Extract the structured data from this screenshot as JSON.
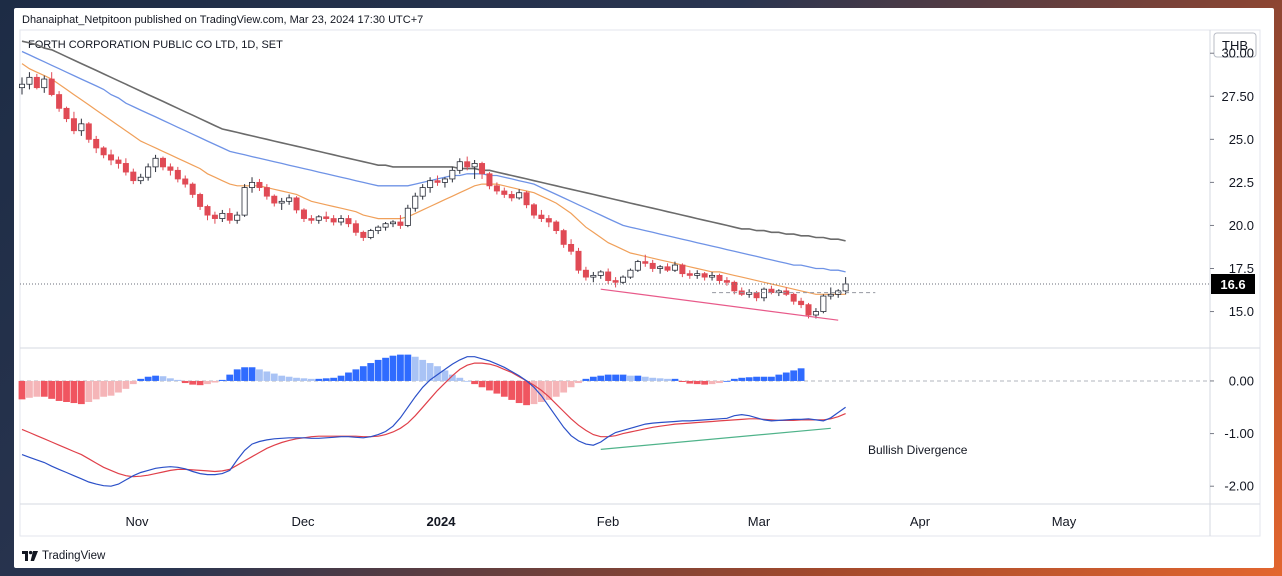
{
  "header": {
    "publisher_line": "Dhanaiphat_Netpitoon published on TradingView.com, Mar 23, 2024 17:30 UTC+7",
    "instrument": "FORTH CORPORATION PUBLIC CO LTD, 1D, SET",
    "currency": "THB"
  },
  "footer": {
    "brand": "TradingView"
  },
  "colors": {
    "up": "#2962ff",
    "down": "#e04a55",
    "ema_fast": "#f0a05a",
    "ema_mid": "#6f93e6",
    "ema_slow": "#6b6b6b",
    "macd_line": "#2b50c8",
    "signal_line": "#e0404a",
    "hist_up_strong": "#2f6bff",
    "hist_up_weak": "#a9c3f5",
    "hist_down_strong": "#f05560",
    "hist_down_weak": "#f5b5b8",
    "trendline_price": "#e85a8a",
    "trendline_macd": "#4fb38a",
    "last_price_bg": "#000000"
  },
  "chart_data": {
    "type": "candlestick",
    "price_panel": {
      "y_ticks": [
        "30.00",
        "27.50",
        "25.0",
        "22.5",
        "20.0",
        "17.5",
        "15.0"
      ],
      "ylim": [
        13.0,
        31.0
      ],
      "last_price_label": "16.6",
      "last_price": 16.6
    },
    "macd_panel": {
      "y_ticks": [
        "0.00",
        "-1.00",
        "-2.00"
      ],
      "ylim": [
        -2.3,
        0.55
      ]
    },
    "x_ticks": [
      "Nov",
      "Dec",
      "2024",
      "Feb",
      "Mar",
      "Apr",
      "May"
    ],
    "annotation": "Bullish Divergence",
    "candles": [
      [
        28.0,
        28.6,
        27.6,
        28.2
      ],
      [
        28.2,
        28.9,
        27.9,
        28.6
      ],
      [
        28.6,
        28.8,
        27.9,
        28.0
      ],
      [
        28.0,
        28.7,
        27.7,
        28.5
      ],
      [
        28.5,
        28.9,
        27.5,
        27.6
      ],
      [
        27.6,
        27.8,
        26.6,
        26.8
      ],
      [
        26.8,
        26.9,
        26.0,
        26.2
      ],
      [
        26.2,
        26.6,
        25.3,
        25.5
      ],
      [
        25.5,
        26.2,
        25.2,
        25.9
      ],
      [
        25.9,
        26.0,
        24.8,
        25.0
      ],
      [
        25.0,
        25.2,
        24.2,
        24.5
      ],
      [
        24.5,
        24.6,
        23.9,
        24.1
      ],
      [
        24.1,
        24.4,
        23.5,
        23.8
      ],
      [
        23.8,
        24.0,
        23.3,
        23.6
      ],
      [
        23.6,
        23.9,
        22.9,
        23.1
      ],
      [
        23.1,
        23.3,
        22.4,
        22.6
      ],
      [
        22.6,
        23.0,
        22.4,
        22.8
      ],
      [
        22.8,
        23.6,
        22.6,
        23.4
      ],
      [
        23.4,
        24.1,
        23.1,
        23.9
      ],
      [
        23.9,
        24.0,
        23.2,
        23.4
      ],
      [
        23.4,
        23.6,
        22.9,
        23.2
      ],
      [
        23.2,
        23.4,
        22.5,
        22.7
      ],
      [
        22.7,
        22.9,
        22.2,
        22.4
      ],
      [
        22.4,
        22.5,
        21.6,
        21.8
      ],
      [
        21.8,
        21.9,
        20.9,
        21.1
      ],
      [
        21.1,
        21.2,
        20.3,
        20.6
      ],
      [
        20.6,
        20.8,
        20.1,
        20.4
      ],
      [
        20.4,
        20.9,
        20.2,
        20.7
      ],
      [
        20.7,
        21.0,
        20.1,
        20.3
      ],
      [
        20.3,
        20.8,
        20.1,
        20.6
      ],
      [
        20.6,
        22.4,
        20.5,
        22.2
      ],
      [
        22.2,
        22.8,
        21.9,
        22.5
      ],
      [
        22.5,
        22.7,
        22.0,
        22.2
      ],
      [
        22.2,
        22.4,
        21.5,
        21.7
      ],
      [
        21.7,
        21.8,
        21.1,
        21.3
      ],
      [
        21.3,
        21.6,
        20.9,
        21.4
      ],
      [
        21.4,
        21.8,
        21.2,
        21.6
      ],
      [
        21.6,
        21.7,
        20.7,
        20.9
      ],
      [
        20.9,
        21.0,
        20.2,
        20.4
      ],
      [
        20.4,
        20.6,
        20.1,
        20.3
      ],
      [
        20.3,
        20.6,
        20.1,
        20.5
      ],
      [
        20.5,
        20.8,
        20.2,
        20.4
      ],
      [
        20.4,
        20.6,
        20.0,
        20.2
      ],
      [
        20.2,
        20.6,
        20.0,
        20.4
      ],
      [
        20.4,
        20.6,
        19.9,
        20.1
      ],
      [
        20.1,
        20.3,
        19.4,
        19.6
      ],
      [
        19.6,
        19.7,
        19.1,
        19.3
      ],
      [
        19.3,
        19.8,
        19.2,
        19.7
      ],
      [
        19.7,
        20.0,
        19.5,
        19.9
      ],
      [
        19.9,
        20.2,
        19.7,
        20.1
      ],
      [
        20.1,
        20.3,
        19.9,
        20.2
      ],
      [
        20.2,
        20.6,
        19.8,
        20.0
      ],
      [
        20.0,
        21.2,
        19.9,
        21.0
      ],
      [
        21.0,
        21.9,
        20.8,
        21.7
      ],
      [
        21.7,
        22.4,
        21.5,
        22.2
      ],
      [
        22.2,
        22.8,
        21.9,
        22.6
      ],
      [
        22.6,
        22.9,
        22.3,
        22.5
      ],
      [
        22.5,
        22.8,
        22.2,
        22.7
      ],
      [
        22.7,
        23.4,
        22.5,
        23.2
      ],
      [
        23.2,
        23.9,
        23.0,
        23.7
      ],
      [
        23.7,
        24.0,
        23.2,
        23.4
      ],
      [
        23.4,
        23.8,
        22.7,
        23.6
      ],
      [
        23.6,
        23.7,
        22.7,
        23.0
      ],
      [
        23.0,
        23.1,
        22.1,
        22.3
      ],
      [
        22.3,
        22.5,
        21.8,
        22.0
      ],
      [
        22.0,
        22.2,
        21.6,
        21.8
      ],
      [
        21.8,
        22.0,
        21.4,
        21.6
      ],
      [
        21.6,
        22.1,
        21.5,
        21.9
      ],
      [
        21.9,
        22.0,
        21.0,
        21.2
      ],
      [
        21.2,
        21.3,
        20.4,
        20.6
      ],
      [
        20.6,
        20.9,
        20.2,
        20.4
      ],
      [
        20.4,
        20.6,
        19.9,
        20.2
      ],
      [
        20.2,
        20.3,
        19.5,
        19.7
      ],
      [
        19.7,
        19.8,
        18.7,
        18.9
      ],
      [
        18.9,
        19.2,
        18.3,
        18.5
      ],
      [
        18.5,
        18.7,
        17.2,
        17.4
      ],
      [
        17.4,
        17.6,
        16.8,
        17.0
      ],
      [
        17.0,
        17.3,
        16.7,
        17.1
      ],
      [
        17.1,
        17.4,
        16.9,
        17.3
      ],
      [
        17.3,
        17.5,
        16.6,
        16.8
      ],
      [
        16.8,
        17.0,
        16.4,
        16.7
      ],
      [
        16.7,
        17.1,
        16.6,
        17.0
      ],
      [
        17.0,
        17.5,
        16.9,
        17.4
      ],
      [
        17.4,
        18.0,
        17.3,
        17.9
      ],
      [
        17.9,
        18.3,
        17.6,
        17.8
      ],
      [
        17.8,
        18.0,
        17.3,
        17.5
      ],
      [
        17.5,
        17.7,
        17.2,
        17.6
      ],
      [
        17.6,
        17.8,
        17.3,
        17.4
      ],
      [
        17.4,
        17.9,
        17.3,
        17.7
      ],
      [
        17.7,
        17.8,
        17.0,
        17.2
      ],
      [
        17.2,
        17.4,
        16.9,
        17.1
      ],
      [
        17.1,
        17.4,
        16.9,
        17.2
      ],
      [
        17.2,
        17.3,
        16.8,
        17.0
      ],
      [
        17.0,
        17.3,
        16.8,
        17.1
      ],
      [
        17.1,
        17.2,
        16.6,
        16.8
      ],
      [
        16.8,
        17.0,
        16.5,
        16.7
      ],
      [
        16.7,
        16.8,
        16.0,
        16.2
      ],
      [
        16.2,
        16.4,
        15.9,
        16.0
      ],
      [
        16.0,
        16.3,
        15.8,
        16.1
      ],
      [
        16.1,
        16.2,
        15.6,
        15.8
      ],
      [
        15.8,
        16.4,
        15.6,
        16.3
      ],
      [
        16.3,
        16.5,
        16.0,
        16.1
      ],
      [
        16.1,
        16.3,
        15.9,
        16.2
      ],
      [
        16.2,
        16.4,
        15.9,
        16.0
      ],
      [
        16.0,
        16.1,
        15.4,
        15.6
      ],
      [
        15.6,
        15.8,
        15.2,
        15.4
      ],
      [
        15.4,
        15.5,
        14.6,
        14.8
      ],
      [
        14.8,
        15.2,
        14.6,
        15.0
      ],
      [
        15.0,
        16.0,
        14.9,
        15.9
      ],
      [
        15.9,
        16.4,
        15.7,
        16.0
      ],
      [
        16.0,
        16.3,
        15.8,
        16.2
      ],
      [
        16.2,
        17.0,
        16.0,
        16.6
      ]
    ],
    "ema_fast": [
      29.4,
      29.1,
      28.9,
      28.7,
      28.5,
      28.2,
      27.9,
      27.6,
      27.3,
      27.0,
      26.7,
      26.4,
      26.1,
      25.8,
      25.5,
      25.2,
      24.9,
      24.7,
      24.5,
      24.3,
      24.1,
      23.9,
      23.7,
      23.5,
      23.3,
      23.0,
      22.8,
      22.6,
      22.4,
      22.3,
      22.3,
      22.3,
      22.3,
      22.2,
      22.1,
      22.0,
      21.9,
      21.8,
      21.6,
      21.4,
      21.3,
      21.2,
      21.1,
      21.0,
      20.9,
      20.8,
      20.6,
      20.5,
      20.4,
      20.4,
      20.4,
      20.4,
      20.5,
      20.7,
      20.9,
      21.1,
      21.3,
      21.5,
      21.7,
      21.9,
      22.1,
      22.3,
      22.4,
      22.4,
      22.4,
      22.3,
      22.2,
      22.1,
      22.0,
      21.9,
      21.7,
      21.5,
      21.3,
      21.0,
      20.7,
      20.3,
      19.9,
      19.6,
      19.3,
      19.0,
      18.8,
      18.6,
      18.4,
      18.3,
      18.2,
      18.1,
      18.0,
      17.9,
      17.8,
      17.7,
      17.6,
      17.5,
      17.4,
      17.3,
      17.3,
      17.2,
      17.1,
      17.0,
      16.9,
      16.8,
      16.7,
      16.6,
      16.5,
      16.4,
      16.3,
      16.2,
      16.1,
      16.0,
      16.0,
      16.0,
      16.0,
      16.0
    ],
    "ema_mid": [
      30.1,
      29.9,
      29.7,
      29.5,
      29.3,
      29.1,
      28.9,
      28.7,
      28.5,
      28.3,
      28.1,
      27.9,
      27.6,
      27.4,
      27.1,
      26.9,
      26.7,
      26.5,
      26.3,
      26.1,
      25.9,
      25.7,
      25.5,
      25.3,
      25.1,
      24.9,
      24.7,
      24.5,
      24.3,
      24.2,
      24.1,
      24.0,
      23.9,
      23.8,
      23.7,
      23.6,
      23.5,
      23.4,
      23.3,
      23.2,
      23.1,
      23.0,
      22.9,
      22.8,
      22.7,
      22.6,
      22.5,
      22.4,
      22.3,
      22.3,
      22.3,
      22.3,
      22.3,
      22.4,
      22.5,
      22.6,
      22.7,
      22.8,
      22.9,
      22.9,
      23.0,
      23.0,
      23.0,
      22.9,
      22.9,
      22.8,
      22.7,
      22.6,
      22.5,
      22.4,
      22.2,
      22.0,
      21.8,
      21.6,
      21.4,
      21.2,
      21.0,
      20.8,
      20.6,
      20.4,
      20.2,
      20.0,
      19.9,
      19.8,
      19.7,
      19.6,
      19.5,
      19.4,
      19.3,
      19.2,
      19.1,
      19.0,
      18.9,
      18.8,
      18.7,
      18.6,
      18.5,
      18.4,
      18.3,
      18.2,
      18.1,
      18.0,
      17.9,
      17.8,
      17.7,
      17.7,
      17.6,
      17.5,
      17.5,
      17.4,
      17.4,
      17.3
    ],
    "ema_slow": [
      30.7,
      30.6,
      30.5,
      30.3,
      30.2,
      30.0,
      29.8,
      29.6,
      29.4,
      29.2,
      29.0,
      28.8,
      28.6,
      28.4,
      28.2,
      28.0,
      27.8,
      27.6,
      27.4,
      27.2,
      27.0,
      26.8,
      26.6,
      26.4,
      26.2,
      26.0,
      25.8,
      25.6,
      25.5,
      25.4,
      25.3,
      25.2,
      25.1,
      25.0,
      24.9,
      24.8,
      24.7,
      24.6,
      24.5,
      24.4,
      24.3,
      24.2,
      24.1,
      24.0,
      23.9,
      23.8,
      23.7,
      23.6,
      23.5,
      23.5,
      23.4,
      23.4,
      23.4,
      23.4,
      23.4,
      23.4,
      23.4,
      23.4,
      23.4,
      23.3,
      23.3,
      23.3,
      23.2,
      23.2,
      23.1,
      23.0,
      22.9,
      22.8,
      22.7,
      22.6,
      22.5,
      22.4,
      22.3,
      22.2,
      22.1,
      22.0,
      21.9,
      21.8,
      21.7,
      21.6,
      21.5,
      21.4,
      21.3,
      21.2,
      21.1,
      21.0,
      20.9,
      20.8,
      20.7,
      20.6,
      20.5,
      20.4,
      20.3,
      20.2,
      20.1,
      20.0,
      19.9,
      19.8,
      19.8,
      19.7,
      19.7,
      19.6,
      19.6,
      19.5,
      19.5,
      19.4,
      19.4,
      19.3,
      19.3,
      19.2,
      19.2,
      19.1
    ],
    "macd": [
      -1.4,
      -1.45,
      -1.5,
      -1.55,
      -1.62,
      -1.68,
      -1.74,
      -1.8,
      -1.86,
      -1.92,
      -1.96,
      -1.99,
      -2.0,
      -1.96,
      -1.88,
      -1.8,
      -1.74,
      -1.7,
      -1.66,
      -1.64,
      -1.63,
      -1.64,
      -1.67,
      -1.72,
      -1.76,
      -1.78,
      -1.78,
      -1.76,
      -1.7,
      -1.5,
      -1.32,
      -1.2,
      -1.15,
      -1.12,
      -1.1,
      -1.09,
      -1.08,
      -1.08,
      -1.08,
      -1.09,
      -1.09,
      -1.08,
      -1.07,
      -1.06,
      -1.06,
      -1.07,
      -1.08,
      -1.06,
      -1.02,
      -0.96,
      -0.86,
      -0.7,
      -0.5,
      -0.3,
      -0.12,
      0.02,
      0.12,
      0.22,
      0.32,
      0.4,
      0.46,
      0.46,
      0.42,
      0.38,
      0.32,
      0.26,
      0.18,
      0.1,
      0.0,
      -0.12,
      -0.28,
      -0.48,
      -0.68,
      -0.88,
      -1.04,
      -1.14,
      -1.2,
      -1.22,
      -1.16,
      -1.06,
      -0.98,
      -0.94,
      -0.9,
      -0.86,
      -0.82,
      -0.8,
      -0.79,
      -0.78,
      -0.77,
      -0.76,
      -0.76,
      -0.75,
      -0.74,
      -0.73,
      -0.72,
      -0.71,
      -0.66,
      -0.64,
      -0.66,
      -0.7,
      -0.74,
      -0.76,
      -0.75,
      -0.74,
      -0.73,
      -0.73,
      -0.72,
      -0.74,
      -0.76,
      -0.7,
      -0.6,
      -0.5
    ],
    "signal": [
      -0.92,
      -0.98,
      -1.04,
      -1.1,
      -1.16,
      -1.22,
      -1.28,
      -1.34,
      -1.4,
      -1.48,
      -1.56,
      -1.64,
      -1.7,
      -1.76,
      -1.8,
      -1.82,
      -1.81,
      -1.79,
      -1.76,
      -1.73,
      -1.7,
      -1.68,
      -1.68,
      -1.69,
      -1.7,
      -1.71,
      -1.72,
      -1.71,
      -1.68,
      -1.6,
      -1.52,
      -1.44,
      -1.36,
      -1.28,
      -1.22,
      -1.17,
      -1.13,
      -1.1,
      -1.08,
      -1.06,
      -1.05,
      -1.05,
      -1.05,
      -1.05,
      -1.05,
      -1.05,
      -1.06,
      -1.06,
      -1.05,
      -1.02,
      -0.97,
      -0.9,
      -0.8,
      -0.66,
      -0.5,
      -0.34,
      -0.18,
      -0.04,
      0.1,
      0.22,
      0.3,
      0.34,
      0.34,
      0.32,
      0.28,
      0.22,
      0.16,
      0.08,
      0.0,
      -0.08,
      -0.18,
      -0.3,
      -0.44,
      -0.58,
      -0.72,
      -0.84,
      -0.94,
      -1.02,
      -1.06,
      -1.06,
      -1.04,
      -1.0,
      -0.97,
      -0.94,
      -0.91,
      -0.88,
      -0.86,
      -0.84,
      -0.82,
      -0.81,
      -0.8,
      -0.79,
      -0.78,
      -0.77,
      -0.76,
      -0.75,
      -0.74,
      -0.73,
      -0.72,
      -0.72,
      -0.73,
      -0.74,
      -0.75,
      -0.75,
      -0.75,
      -0.74,
      -0.74,
      -0.74,
      -0.74,
      -0.72,
      -0.68,
      -0.62
    ],
    "histogram": [
      -0.35,
      -0.32,
      -0.3,
      -0.3,
      -0.34,
      -0.38,
      -0.4,
      -0.42,
      -0.44,
      -0.4,
      -0.35,
      -0.3,
      -0.28,
      -0.22,
      -0.15,
      -0.06,
      0.04,
      0.08,
      0.1,
      0.09,
      0.05,
      0.02,
      -0.04,
      -0.07,
      -0.08,
      -0.06,
      -0.03,
      0.02,
      0.12,
      0.22,
      0.26,
      0.26,
      0.22,
      0.18,
      0.14,
      0.1,
      0.08,
      0.06,
      0.05,
      0.04,
      0.04,
      0.05,
      0.06,
      0.1,
      0.16,
      0.22,
      0.28,
      0.34,
      0.4,
      0.44,
      0.48,
      0.5,
      0.5,
      0.46,
      0.4,
      0.34,
      0.28,
      0.2,
      0.12,
      0.06,
      0.0,
      -0.06,
      -0.12,
      -0.18,
      -0.24,
      -0.3,
      -0.36,
      -0.42,
      -0.46,
      -0.44,
      -0.4,
      -0.36,
      -0.3,
      -0.22,
      -0.12,
      -0.04,
      0.04,
      0.08,
      0.1,
      0.12,
      0.12,
      0.12,
      0.1,
      0.1,
      0.08,
      0.06,
      0.05,
      0.04,
      0.04,
      -0.02,
      -0.05,
      -0.06,
      -0.07,
      -0.06,
      -0.04,
      0.0,
      0.04,
      0.06,
      0.07,
      0.08,
      0.08,
      0.08,
      0.12,
      0.16,
      0.2,
      0.24
    ],
    "trendlines": {
      "price": {
        "from": [
          78,
          16.3
        ],
        "to": [
          110,
          14.5
        ]
      },
      "macd": {
        "from": [
          78,
          -1.3
        ],
        "to": [
          109,
          -0.9
        ]
      },
      "dashed_level": {
        "from": [
          93,
          16.1
        ],
        "to": [
          115,
          16.1
        ]
      }
    }
  }
}
